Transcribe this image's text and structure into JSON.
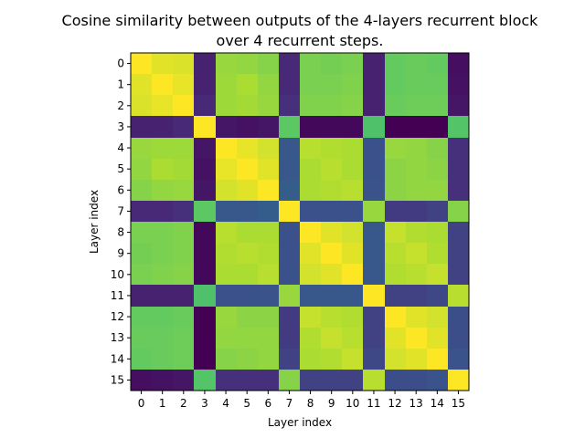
{
  "chart_data": {
    "type": "heatmap",
    "title_lines": [
      "Cosine similarity between outputs of the 4-layers recurrent block",
      "over 4 recurrent steps."
    ],
    "xlabel": "Layer index",
    "ylabel": "Layer index",
    "x_ticks": [
      "0",
      "1",
      "2",
      "3",
      "4",
      "5",
      "6",
      "7",
      "8",
      "9",
      "10",
      "11",
      "12",
      "13",
      "14",
      "15"
    ],
    "y_ticks": [
      "0",
      "1",
      "2",
      "3",
      "4",
      "5",
      "6",
      "7",
      "8",
      "9",
      "10",
      "11",
      "12",
      "13",
      "14",
      "15"
    ],
    "colormap": "viridis",
    "value_range": [
      0,
      1
    ],
    "values": [
      [
        1.0,
        0.96,
        0.95,
        0.1,
        0.85,
        0.84,
        0.82,
        0.12,
        0.8,
        0.79,
        0.8,
        0.1,
        0.76,
        0.77,
        0.76,
        0.04
      ],
      [
        0.96,
        1.0,
        0.97,
        0.1,
        0.86,
        0.88,
        0.84,
        0.12,
        0.8,
        0.8,
        0.81,
        0.1,
        0.76,
        0.77,
        0.77,
        0.05
      ],
      [
        0.95,
        0.97,
        1.0,
        0.12,
        0.86,
        0.87,
        0.85,
        0.14,
        0.81,
        0.81,
        0.82,
        0.1,
        0.77,
        0.78,
        0.78,
        0.06
      ],
      [
        0.1,
        0.1,
        0.12,
        1.0,
        0.06,
        0.05,
        0.06,
        0.75,
        0.02,
        0.02,
        0.02,
        0.72,
        0.0,
        0.0,
        0.0,
        0.73
      ],
      [
        0.85,
        0.86,
        0.86,
        0.06,
        1.0,
        0.97,
        0.94,
        0.28,
        0.9,
        0.89,
        0.88,
        0.25,
        0.85,
        0.84,
        0.82,
        0.14
      ],
      [
        0.84,
        0.88,
        0.87,
        0.05,
        0.97,
        1.0,
        0.96,
        0.28,
        0.88,
        0.9,
        0.88,
        0.25,
        0.83,
        0.84,
        0.83,
        0.14
      ],
      [
        0.82,
        0.84,
        0.85,
        0.06,
        0.94,
        0.96,
        1.0,
        0.3,
        0.88,
        0.89,
        0.9,
        0.26,
        0.83,
        0.84,
        0.84,
        0.14
      ],
      [
        0.12,
        0.12,
        0.14,
        0.75,
        0.28,
        0.28,
        0.3,
        1.0,
        0.25,
        0.25,
        0.25,
        0.85,
        0.18,
        0.18,
        0.2,
        0.82
      ],
      [
        0.8,
        0.8,
        0.81,
        0.02,
        0.9,
        0.88,
        0.88,
        0.25,
        1.0,
        0.96,
        0.94,
        0.28,
        0.92,
        0.89,
        0.88,
        0.2
      ],
      [
        0.79,
        0.8,
        0.81,
        0.02,
        0.89,
        0.9,
        0.89,
        0.25,
        0.96,
        1.0,
        0.96,
        0.28,
        0.9,
        0.92,
        0.89,
        0.2
      ],
      [
        0.8,
        0.81,
        0.82,
        0.02,
        0.88,
        0.88,
        0.9,
        0.25,
        0.94,
        0.96,
        1.0,
        0.28,
        0.89,
        0.9,
        0.92,
        0.2
      ],
      [
        0.1,
        0.1,
        0.1,
        0.72,
        0.25,
        0.25,
        0.26,
        0.85,
        0.28,
        0.28,
        0.28,
        1.0,
        0.2,
        0.2,
        0.22,
        0.9
      ],
      [
        0.76,
        0.76,
        0.77,
        0.0,
        0.85,
        0.83,
        0.83,
        0.18,
        0.92,
        0.9,
        0.89,
        0.2,
        1.0,
        0.96,
        0.94,
        0.24
      ],
      [
        0.77,
        0.77,
        0.78,
        0.0,
        0.84,
        0.84,
        0.84,
        0.18,
        0.89,
        0.92,
        0.9,
        0.2,
        0.96,
        1.0,
        0.96,
        0.24
      ],
      [
        0.76,
        0.77,
        0.78,
        0.0,
        0.82,
        0.83,
        0.84,
        0.2,
        0.88,
        0.89,
        0.92,
        0.22,
        0.94,
        0.96,
        1.0,
        0.26
      ],
      [
        0.04,
        0.05,
        0.06,
        0.73,
        0.14,
        0.14,
        0.14,
        0.82,
        0.2,
        0.2,
        0.2,
        0.9,
        0.24,
        0.24,
        0.26,
        1.0
      ]
    ]
  }
}
